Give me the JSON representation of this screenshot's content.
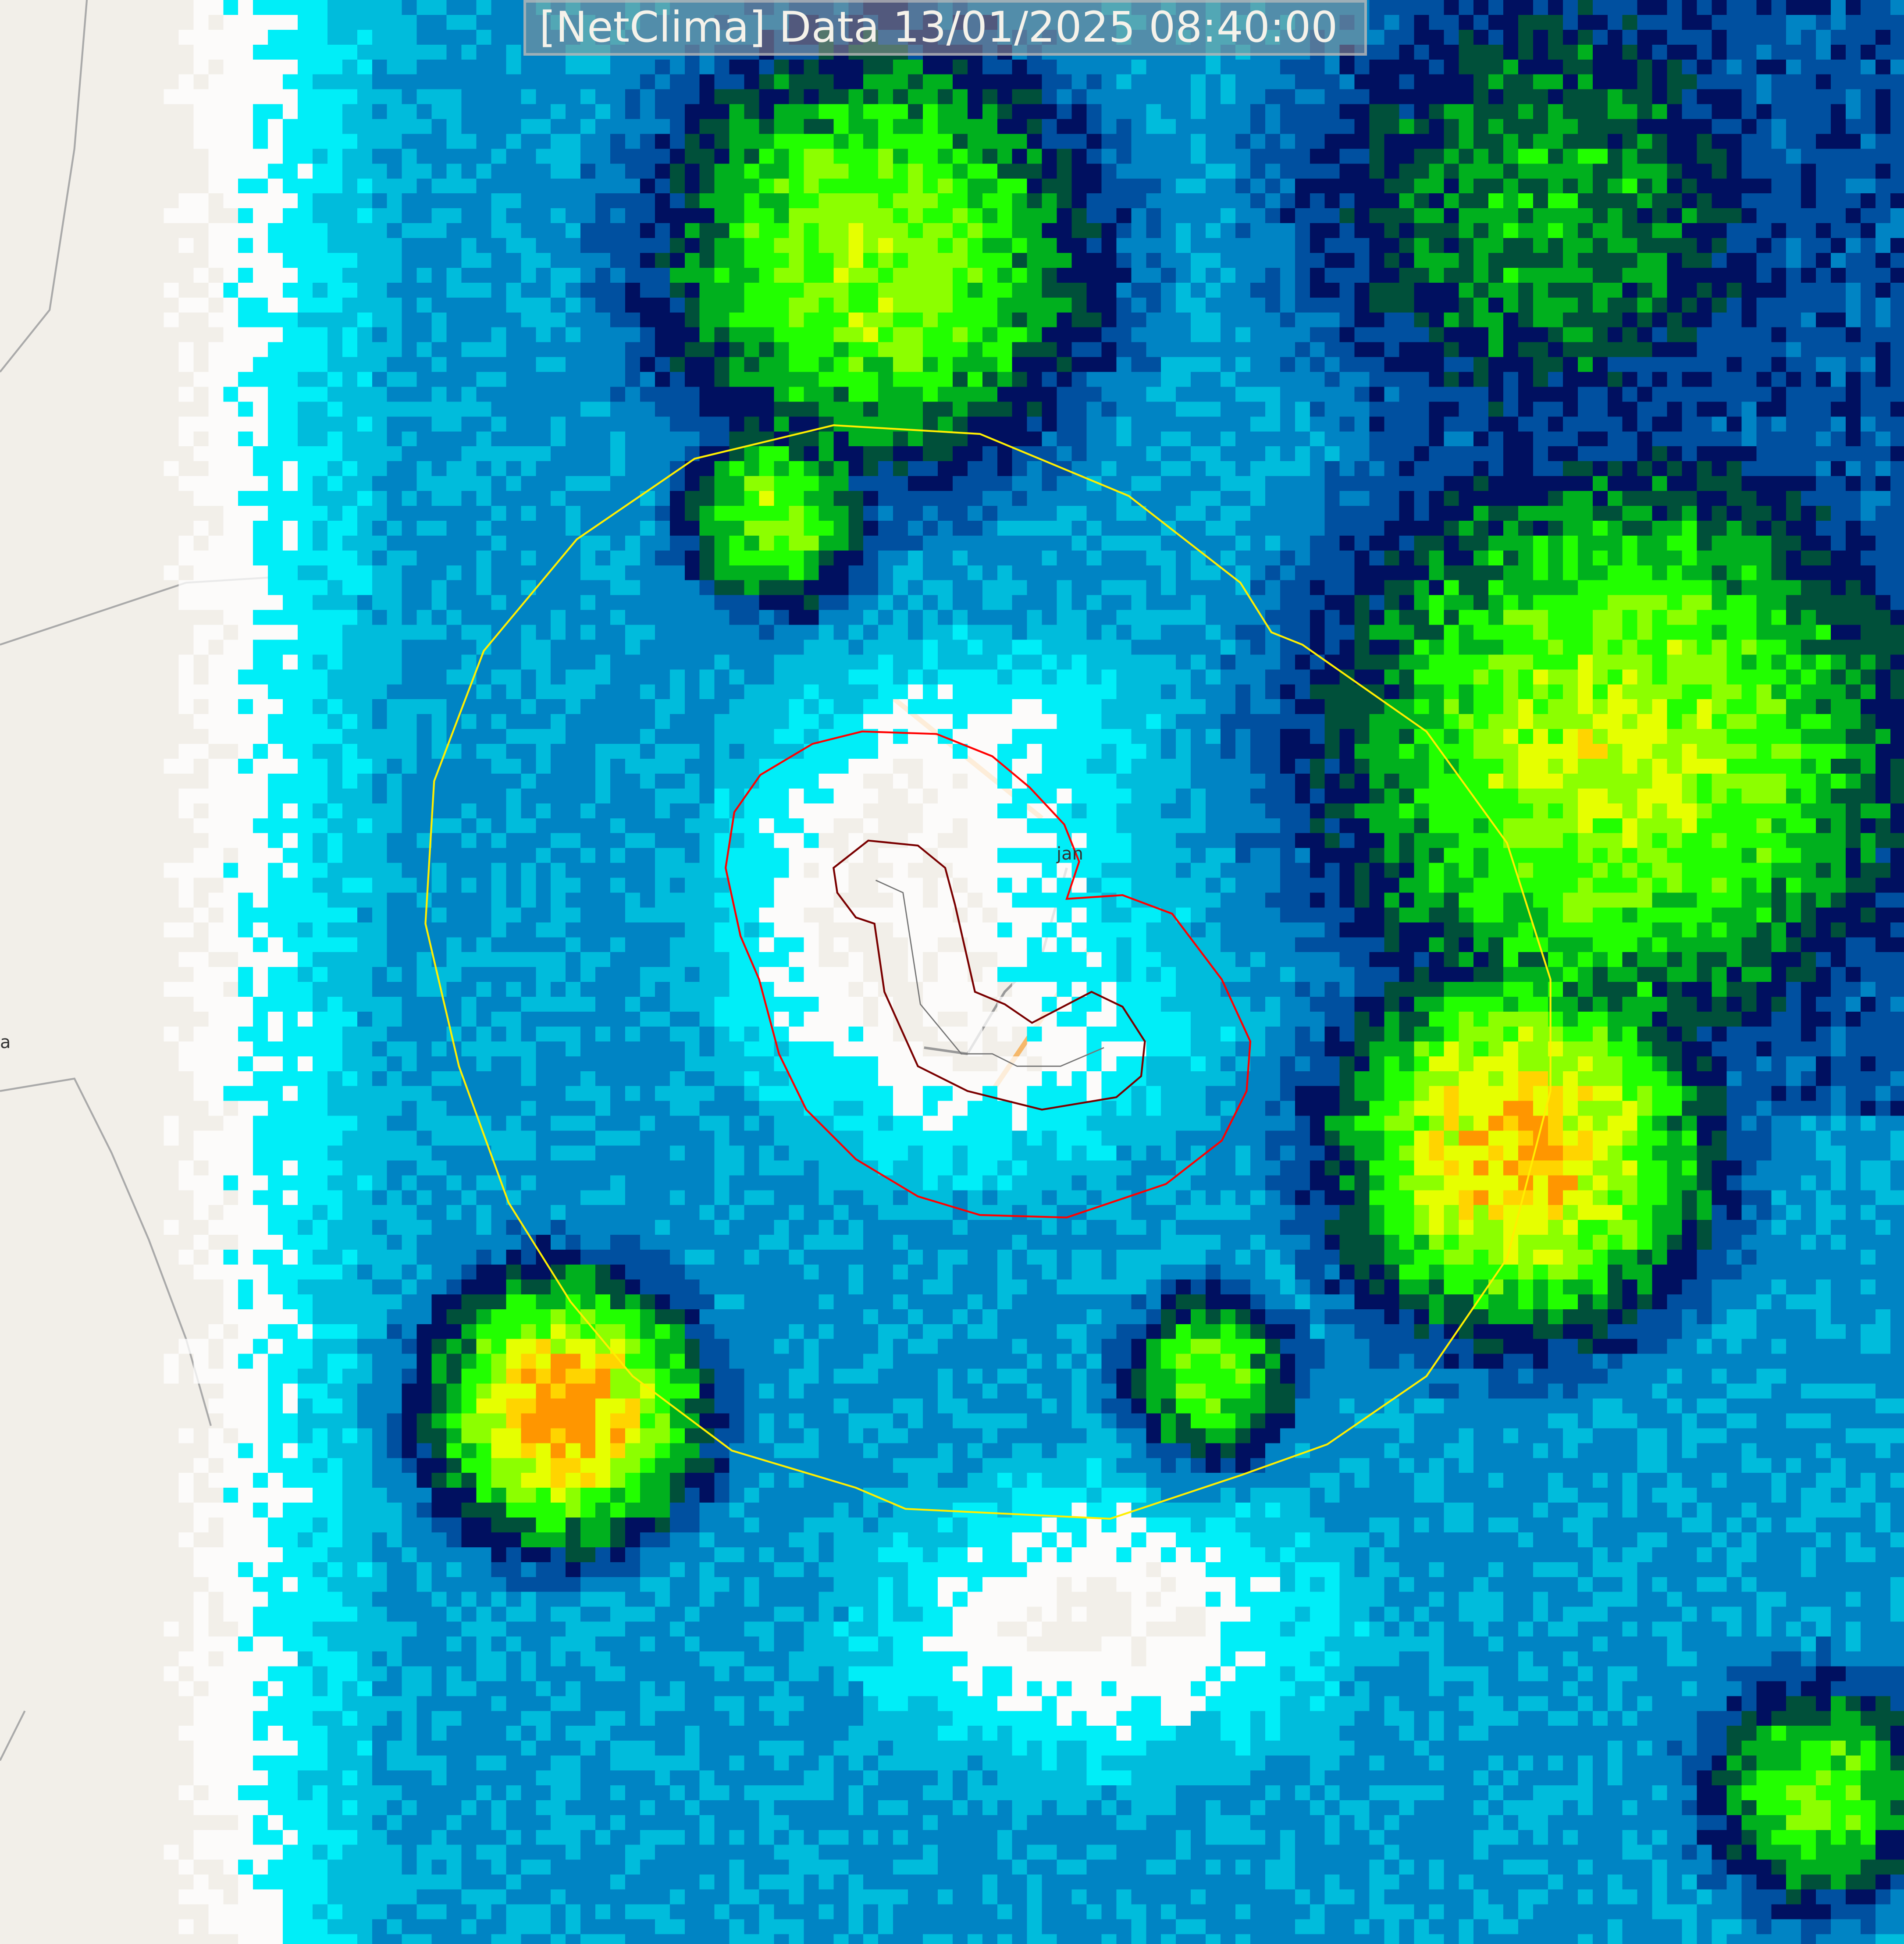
{
  "title": "[NetClima] Data 13/01/2025 08:40:00",
  "map_labels": {
    "town": "jan",
    "left_edge": "a"
  },
  "colors": {
    "map_background": "#f2efe9",
    "outer_ring": "#ffee00",
    "middle_ring": "#ff0000",
    "inner_ring": "#7a0000",
    "road_major": "#f5b86a",
    "road_minor": "#999999",
    "radar_scale": [
      "#ffffff",
      "#00eef8",
      "#00bcdc",
      "#0084c4",
      "#0050a0",
      "#001060",
      "#00503a",
      "#00b01e",
      "#22ff00",
      "#8cff00",
      "#e6ff00",
      "#ffd400",
      "#ff9600"
    ]
  }
}
